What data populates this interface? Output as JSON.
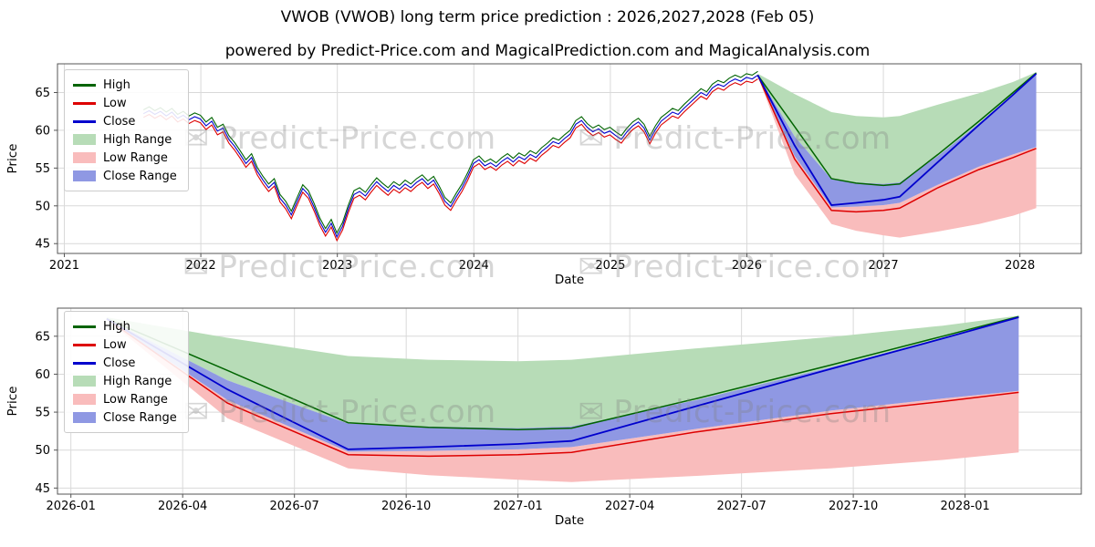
{
  "page": {
    "title": "VWOB (VWOB) long term price prediction : 2026,2027,2028 (Feb 05)",
    "subtitle": "powered by Predict-Price.com and MagicalPrediction.com and MagicalAnalysis.com",
    "watermark": {
      "icon": "✉",
      "text": "Predict-Price.com"
    }
  },
  "colors": {
    "high_line": "#006400",
    "low_line": "#dd0000",
    "close_line": "#0000cd",
    "high_range_fill": "#b7dcb7",
    "low_range_fill": "#f9bcbc",
    "close_range_fill": "#8f98e3",
    "grid": "#d9d9d9",
    "frame": "#555555",
    "tick_text": "#000000"
  },
  "chart_data": {
    "type": "line",
    "legend": [
      {
        "label": "High",
        "swatch": "line",
        "color_key": "high_line"
      },
      {
        "label": "Low",
        "swatch": "line",
        "color_key": "low_line"
      },
      {
        "label": "Close",
        "swatch": "line",
        "color_key": "close_line"
      },
      {
        "label": "High Range",
        "swatch": "patch",
        "color_key": "high_range_fill"
      },
      {
        "label": "Low Range",
        "swatch": "patch",
        "color_key": "low_range_fill"
      },
      {
        "label": "Close Range",
        "swatch": "patch",
        "color_key": "close_range_fill"
      }
    ],
    "charts": [
      {
        "id": "history-and-prediction",
        "xlabel": "Date",
        "ylabel": "Price",
        "xlim": [
          2020.95,
          2028.45
        ],
        "ylim": [
          43.7,
          68.8
        ],
        "xticks": [
          {
            "v": 2021,
            "label": "2021"
          },
          {
            "v": 2022,
            "label": "2022"
          },
          {
            "v": 2023,
            "label": "2023"
          },
          {
            "v": 2024,
            "label": "2024"
          },
          {
            "v": 2025,
            "label": "2025"
          },
          {
            "v": 2026,
            "label": "2026"
          },
          {
            "v": 2027,
            "label": "2027"
          },
          {
            "v": 2028,
            "label": "2028"
          }
        ],
        "yticks": [
          45,
          50,
          55,
          60,
          65
        ],
        "show_history": true
      },
      {
        "id": "prediction-detail",
        "xlabel": "Date",
        "ylabel": "Price",
        "xlim": [
          2025.97,
          2028.26
        ],
        "ylim": [
          44.2,
          68.7
        ],
        "xticks": [
          {
            "v": 2026.0,
            "label": "2026-01"
          },
          {
            "v": 2026.25,
            "label": "2026-04"
          },
          {
            "v": 2026.5,
            "label": "2026-07"
          },
          {
            "v": 2026.75,
            "label": "2026-10"
          },
          {
            "v": 2027.0,
            "label": "2027-01"
          },
          {
            "v": 2027.25,
            "label": "2027-04"
          },
          {
            "v": 2027.5,
            "label": "2027-07"
          },
          {
            "v": 2027.75,
            "label": "2027-10"
          },
          {
            "v": 2028.0,
            "label": "2028-01"
          }
        ],
        "yticks": [
          45,
          50,
          55,
          60,
          65
        ],
        "show_history": false
      }
    ],
    "history": {
      "x_start": 2021.58,
      "x_step": 0.04167,
      "high_offset": 0.5,
      "low_offset": 0.5,
      "close": [
        62.2,
        62.6,
        62.1,
        62.5,
        61.9,
        62.4,
        61.6,
        62.0,
        61.4,
        61.8,
        61.5,
        60.6,
        61.2,
        59.9,
        60.3,
        58.8,
        57.9,
        56.8,
        55.6,
        56.4,
        54.6,
        53.4,
        52.4,
        53.1,
        51.0,
        50.1,
        48.8,
        50.6,
        52.3,
        51.5,
        49.8,
        47.9,
        46.5,
        47.7,
        45.9,
        47.3,
        49.6,
        51.5,
        51.9,
        51.3,
        52.3,
        53.2,
        52.5,
        51.9,
        52.7,
        52.2,
        52.9,
        52.4,
        53.1,
        53.6,
        52.8,
        53.4,
        52.1,
        50.6,
        49.9,
        51.2,
        52.4,
        53.9,
        55.6,
        56.1,
        55.3,
        55.7,
        55.2,
        55.9,
        56.4,
        55.8,
        56.5,
        56.1,
        56.8,
        56.4,
        57.2,
        57.8,
        58.5,
        58.2,
        58.9,
        59.5,
        60.8,
        61.3,
        60.4,
        59.8,
        60.2,
        59.6,
        59.9,
        59.3,
        58.8,
        59.8,
        60.6,
        61.1,
        60.3,
        58.7,
        60.1,
        61.2,
        61.8,
        62.4,
        62.1,
        62.9,
        63.6,
        64.3,
        65.0,
        64.6,
        65.6,
        66.1,
        65.8,
        66.4,
        66.8,
        66.5,
        67.0,
        66.8,
        67.3
      ]
    },
    "prediction": {
      "x": [
        2026.08,
        2026.35,
        2026.62,
        2026.8,
        2027.0,
        2027.12,
        2027.4,
        2027.7,
        2027.95,
        2028.12
      ],
      "close": [
        67.3,
        58.0,
        50.1,
        50.4,
        50.8,
        51.2,
        55.8,
        60.7,
        64.7,
        67.5
      ],
      "high": [
        67.3,
        60.5,
        53.6,
        53.0,
        52.7,
        52.9,
        56.8,
        61.2,
        65.0,
        67.6
      ],
      "low": [
        67.3,
        56.2,
        49.4,
        49.2,
        49.4,
        49.7,
        52.4,
        54.8,
        56.4,
        57.6
      ],
      "high_range_upper": [
        67.5,
        64.8,
        62.4,
        61.9,
        61.7,
        61.9,
        63.4,
        64.9,
        66.4,
        67.7
      ],
      "high_range_lower": [
        67.3,
        59.2,
        53.5,
        53.1,
        52.9,
        53.1,
        56.6,
        60.9,
        64.8,
        67.5
      ],
      "close_range_upper": [
        67.3,
        59.2,
        53.5,
        53.1,
        52.9,
        53.1,
        56.6,
        60.9,
        64.8,
        67.5
      ],
      "close_range_lower": [
        67.2,
        56.6,
        49.8,
        49.9,
        50.1,
        50.4,
        52.8,
        55.2,
        56.8,
        57.8
      ],
      "low_range_upper": [
        67.2,
        56.6,
        49.8,
        49.9,
        50.1,
        50.4,
        52.8,
        55.2,
        56.8,
        57.8
      ],
      "low_range_lower": [
        67.2,
        54.2,
        47.6,
        46.7,
        46.1,
        45.8,
        46.6,
        47.6,
        48.7,
        49.7
      ]
    }
  }
}
